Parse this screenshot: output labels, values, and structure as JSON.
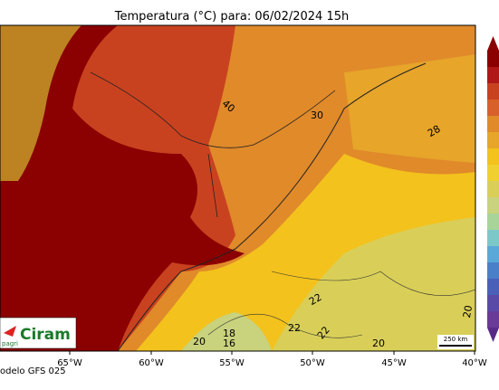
{
  "title": "Temperatura (°C) para: 06/02/2024 15h",
  "x_axis": {
    "labels": [
      "65°W",
      "60°W",
      "55°W",
      "50°W",
      "45°W",
      "40°W"
    ]
  },
  "contour_labels": [
    "28",
    "22",
    "22",
    "20",
    "20",
    "20",
    "18",
    "16",
    "22",
    "30",
    "40"
  ],
  "logo": {
    "name": "Ciram",
    "sub": "pagri"
  },
  "scale_bar": "250 km",
  "footer": "odelo GFS 025"
}
